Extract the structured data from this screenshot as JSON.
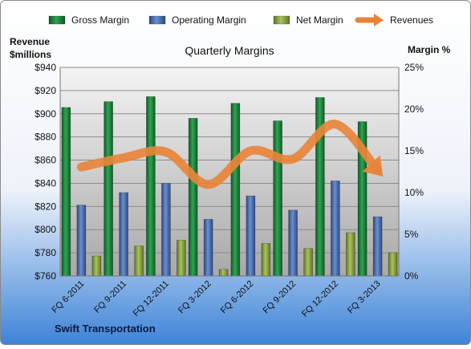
{
  "chart_data": {
    "type": "bar",
    "title": "Quarterly Margins",
    "left_axis_label_line1": "Revenue",
    "left_axis_label_line2": "$millions",
    "right_axis_label": "Margin %",
    "footer": "Swift Transportation",
    "categories": [
      "FQ 6-2011",
      "FQ 9-2011",
      "FQ 12-2011",
      "FQ 3-2012",
      "FQ 6-2012",
      "FQ 9-2012",
      "FQ 12-2012",
      "FQ 3-2013"
    ],
    "left_axis": {
      "min": 760,
      "max": 940,
      "step": 20,
      "format": "$"
    },
    "right_axis": {
      "min": 0,
      "max": 25,
      "step": 5,
      "format": "%"
    },
    "series": [
      {
        "name": "Gross Margin",
        "axis": "right",
        "kind": "bar",
        "color": "#1e8a3e",
        "values": [
          20.2,
          20.9,
          21.5,
          18.9,
          20.7,
          18.6,
          21.4,
          18.5
        ]
      },
      {
        "name": "Operating Margin",
        "axis": "right",
        "kind": "bar",
        "color": "#4a6fb0",
        "values": [
          8.5,
          10.0,
          11.1,
          6.8,
          9.6,
          7.9,
          11.4,
          7.1
        ]
      },
      {
        "name": "Net Margin",
        "axis": "right",
        "kind": "bar",
        "color": "#8fa845",
        "values": [
          2.4,
          3.6,
          4.3,
          0.8,
          3.9,
          3.3,
          5.2,
          2.8
        ]
      },
      {
        "name": "Revenues",
        "axis": "left",
        "kind": "line",
        "color": "#e8843a",
        "values": [
          854,
          862,
          867,
          839,
          868,
          861,
          891,
          851
        ]
      }
    ],
    "legend_position": "top",
    "grid": true
  }
}
